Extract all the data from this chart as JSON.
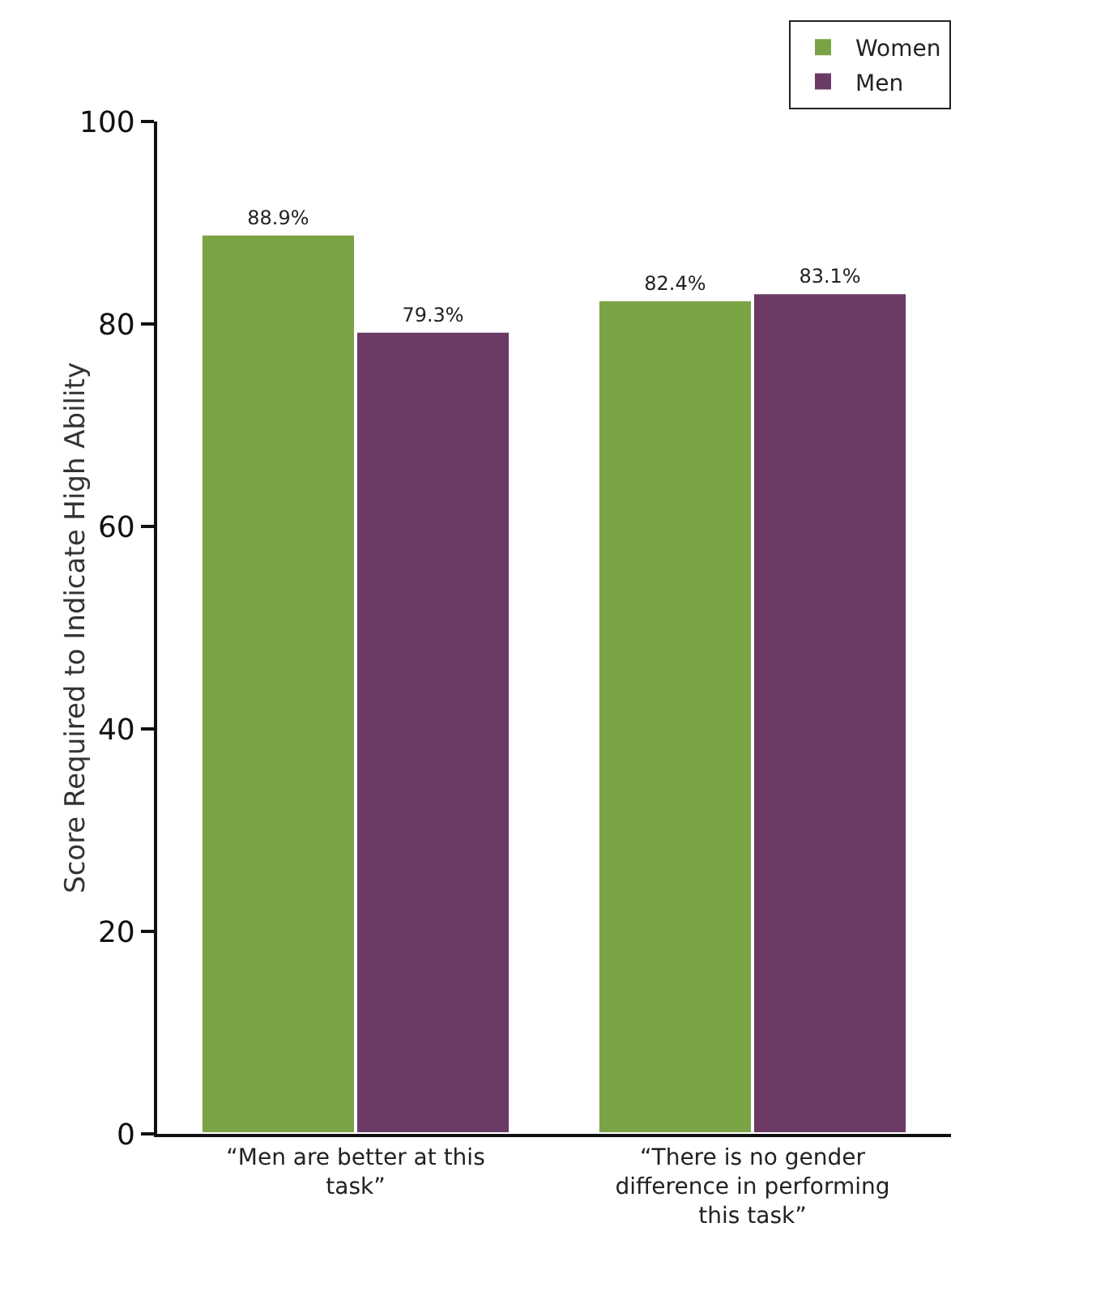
{
  "chart_data": {
    "type": "bar",
    "ylabel": "Score Required to Indicate High Ability",
    "categories": [
      "“Men are better at this task”",
      "“There is no gender difference in performing this task”"
    ],
    "series": [
      {
        "name": "Women",
        "color": "#7aa346",
        "values": [
          88.9,
          82.4
        ],
        "value_labels": [
          "88.9%",
          "82.4%"
        ]
      },
      {
        "name": "Men",
        "color": "#6b3b65",
        "values": [
          79.3,
          83.1
        ],
        "value_labels": [
          "79.3%",
          "83.1%"
        ]
      }
    ],
    "ylim": [
      0,
      100
    ],
    "yticks": [
      0,
      20,
      40,
      60,
      80,
      100
    ],
    "grid": false,
    "legend": "top right"
  }
}
